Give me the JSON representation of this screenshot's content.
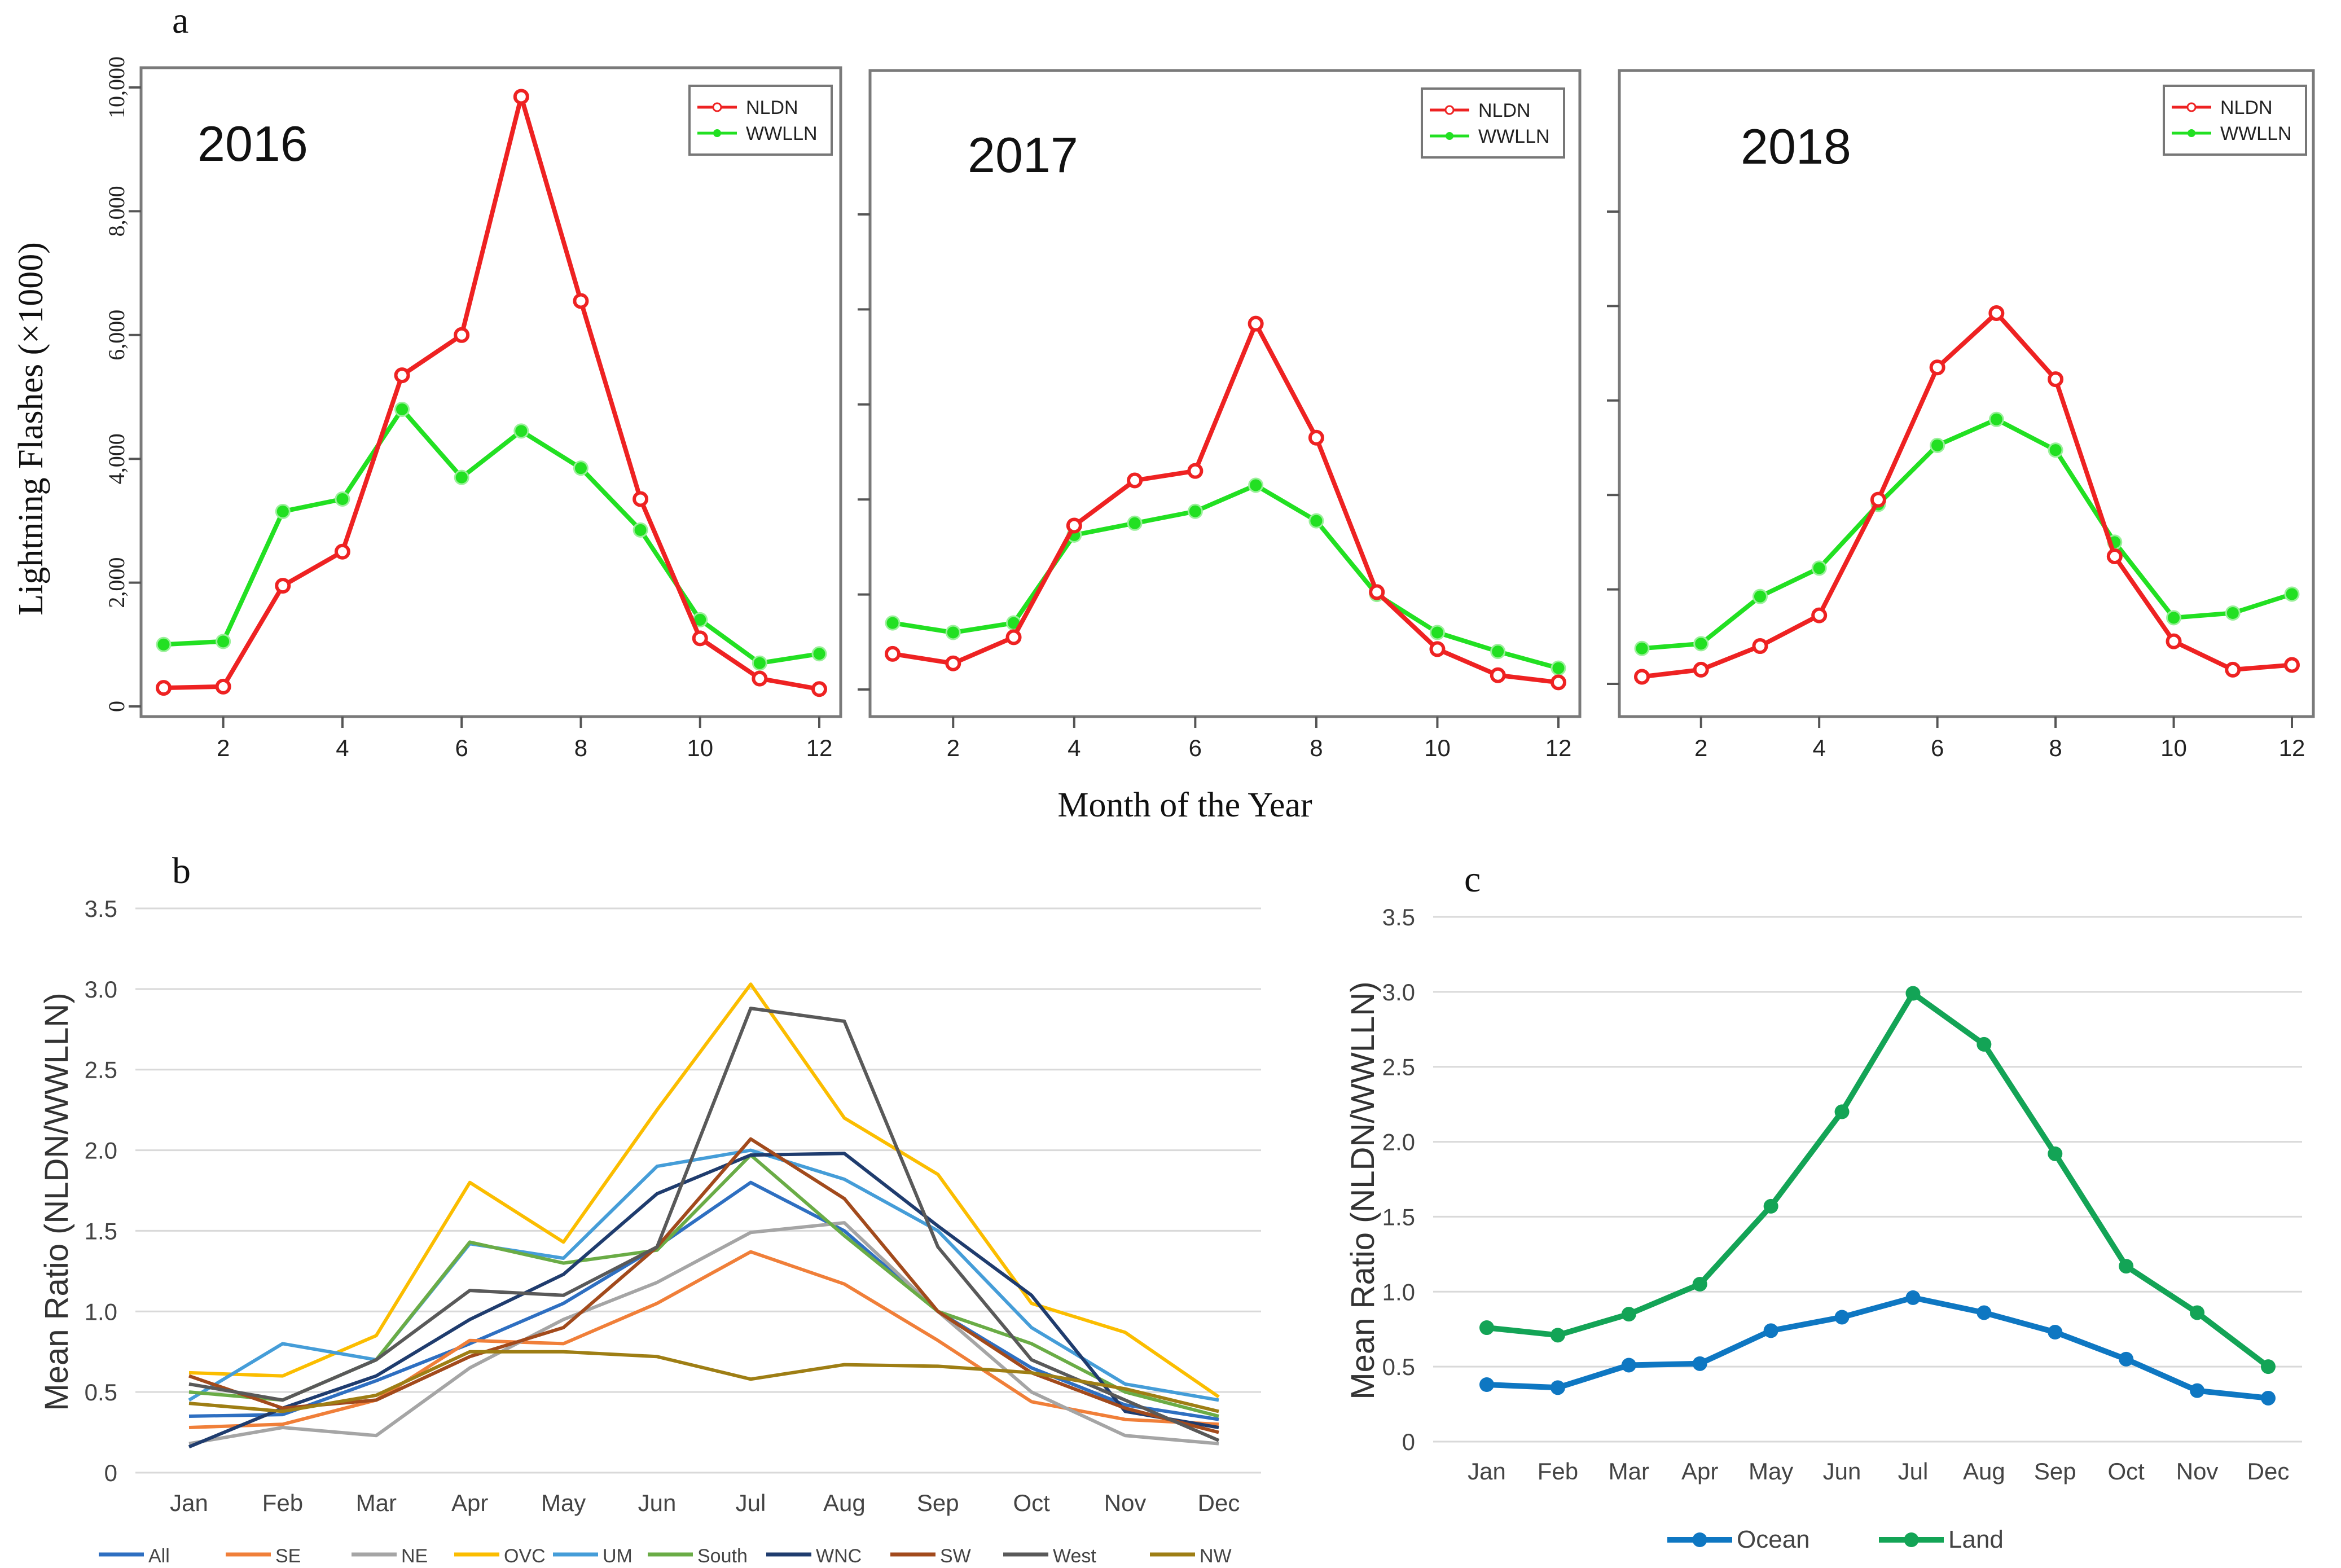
{
  "panel_labels": {
    "a": "a",
    "b": "b",
    "c": "c"
  },
  "shared_axis": {
    "xlabel": "Month of the Year",
    "ylabel": "Lightning Flashes (×1000)"
  },
  "colors": {
    "red": "#ee2222",
    "green": "#22e022",
    "axis": "#555555",
    "grid": "#d9d9d9"
  },
  "chart_data": [
    {
      "type": "line",
      "title": "2016",
      "x": [
        1,
        2,
        3,
        4,
        5,
        6,
        7,
        8,
        9,
        10,
        11,
        12
      ],
      "xticks": [
        "2",
        "4",
        "6",
        "8",
        "10",
        "12"
      ],
      "yticks": [
        "0",
        "2,000",
        "4,000",
        "6,000",
        "8,000",
        "10,000"
      ],
      "ylim": [
        0,
        10000
      ],
      "series": [
        {
          "name": "NLDN",
          "color": "#ee2222",
          "values": [
            300,
            320,
            1950,
            2500,
            5350,
            6000,
            9850,
            6550,
            3350,
            1100,
            450,
            280
          ]
        },
        {
          "name": "WWLLN",
          "color": "#22e022",
          "values": [
            1000,
            1050,
            3150,
            3350,
            4800,
            3700,
            4450,
            3850,
            2850,
            1400,
            700,
            850
          ]
        }
      ]
    },
    {
      "type": "line",
      "title": "2017",
      "x": [
        1,
        2,
        3,
        4,
        5,
        6,
        7,
        8,
        9,
        10,
        11,
        12
      ],
      "xticks": [
        "2",
        "4",
        "6",
        "8",
        "10",
        "12"
      ],
      "ylim": [
        0,
        10000
      ],
      "series": [
        {
          "name": "NLDN",
          "color": "#ee2222",
          "values": [
            750,
            550,
            1100,
            3450,
            4400,
            4600,
            7700,
            5300,
            2050,
            850,
            300,
            150
          ]
        },
        {
          "name": "WWLLN",
          "color": "#22e022",
          "values": [
            1400,
            1200,
            1400,
            3250,
            3500,
            3750,
            4300,
            3550,
            2000,
            1200,
            800,
            450
          ]
        }
      ]
    },
    {
      "type": "line",
      "title": "2018",
      "x": [
        1,
        2,
        3,
        4,
        5,
        6,
        7,
        8,
        9,
        10,
        11,
        12
      ],
      "xticks": [
        "2",
        "4",
        "6",
        "8",
        "10",
        "12"
      ],
      "ylim": [
        0,
        10000
      ],
      "series": [
        {
          "name": "NLDN",
          "color": "#ee2222",
          "values": [
            150,
            300,
            800,
            1450,
            3900,
            6700,
            7850,
            6450,
            2700,
            900,
            300,
            400
          ]
        },
        {
          "name": "WWLLN",
          "color": "#22e022",
          "values": [
            750,
            850,
            1850,
            2450,
            3800,
            5050,
            5600,
            4950,
            3000,
            1400,
            1500,
            1900
          ]
        }
      ]
    },
    {
      "type": "line",
      "ylabel": "Mean Ratio (NLDN/WWLLN)",
      "categories": [
        "Jan",
        "Feb",
        "Mar",
        "Apr",
        "May",
        "Jun",
        "Jul",
        "Aug",
        "Sep",
        "Oct",
        "Nov",
        "Dec"
      ],
      "yticks": [
        "0",
        "0.5",
        "1.0",
        "1.5",
        "2.0",
        "2.5",
        "3.0",
        "3.5"
      ],
      "ylim": [
        0,
        3.5
      ],
      "legend": "bottom",
      "series": [
        {
          "name": "All",
          "color": "#2e6fc1",
          "values": [
            0.35,
            0.36,
            0.57,
            0.8,
            1.05,
            1.4,
            1.8,
            1.5,
            1.0,
            0.65,
            0.42,
            0.33
          ]
        },
        {
          "name": "SE",
          "color": "#f07f39",
          "values": [
            0.28,
            0.3,
            0.45,
            0.82,
            0.8,
            1.05,
            1.37,
            1.17,
            0.82,
            0.44,
            0.33,
            0.3
          ]
        },
        {
          "name": "NE",
          "color": "#a5a5a5",
          "values": [
            0.18,
            0.28,
            0.23,
            0.65,
            0.95,
            1.18,
            1.49,
            1.55,
            1.0,
            0.5,
            0.23,
            0.18
          ]
        },
        {
          "name": "OVC",
          "color": "#fbbd00",
          "values": [
            0.62,
            0.6,
            0.85,
            1.8,
            1.43,
            2.25,
            3.03,
            2.2,
            1.85,
            1.05,
            0.87,
            0.47
          ]
        },
        {
          "name": "UM",
          "color": "#459dd8",
          "values": [
            0.45,
            0.8,
            0.7,
            1.42,
            1.33,
            1.9,
            2.0,
            1.82,
            1.5,
            0.9,
            0.55,
            0.45
          ]
        },
        {
          "name": "South",
          "color": "#6aac46",
          "values": [
            0.5,
            0.45,
            0.7,
            1.43,
            1.3,
            1.38,
            1.97,
            1.47,
            1.0,
            0.8,
            0.5,
            0.35
          ]
        },
        {
          "name": "WNC",
          "color": "#1f3c6e",
          "values": [
            0.16,
            0.4,
            0.6,
            0.95,
            1.23,
            1.73,
            1.97,
            1.98,
            1.53,
            1.1,
            0.38,
            0.28
          ]
        },
        {
          "name": "SW",
          "color": "#a24a1c",
          "values": [
            0.6,
            0.4,
            0.45,
            0.72,
            0.9,
            1.4,
            2.07,
            1.7,
            1.0,
            0.62,
            0.4,
            0.25
          ]
        },
        {
          "name": "West",
          "color": "#595959",
          "values": [
            0.55,
            0.45,
            0.7,
            1.13,
            1.1,
            1.4,
            2.88,
            2.8,
            1.4,
            0.7,
            0.45,
            0.2
          ]
        },
        {
          "name": "NW",
          "color": "#9e7e14",
          "values": [
            0.43,
            0.38,
            0.48,
            0.75,
            0.75,
            0.72,
            0.58,
            0.67,
            0.66,
            0.62,
            0.52,
            0.38
          ]
        }
      ]
    },
    {
      "type": "line",
      "ylabel": "Mean Ratio (NLDN/WWLLN)",
      "categories": [
        "Jan",
        "Feb",
        "Mar",
        "Apr",
        "May",
        "Jun",
        "Jul",
        "Aug",
        "Sep",
        "Oct",
        "Nov",
        "Dec"
      ],
      "yticks": [
        "0",
        "0.5",
        "1.0",
        "1.5",
        "2.0",
        "2.5",
        "3.0",
        "3.5"
      ],
      "ylim": [
        0,
        3.5
      ],
      "legend": "bottom",
      "series": [
        {
          "name": "Ocean",
          "color": "#0e77c2",
          "values": [
            0.38,
            0.36,
            0.51,
            0.52,
            0.74,
            0.83,
            0.96,
            0.86,
            0.73,
            0.55,
            0.34,
            0.29
          ]
        },
        {
          "name": "Land",
          "color": "#13a456",
          "values": [
            0.76,
            0.71,
            0.85,
            1.05,
            1.57,
            2.2,
            2.99,
            2.65,
            1.92,
            1.17,
            0.86,
            0.5
          ]
        }
      ]
    }
  ]
}
